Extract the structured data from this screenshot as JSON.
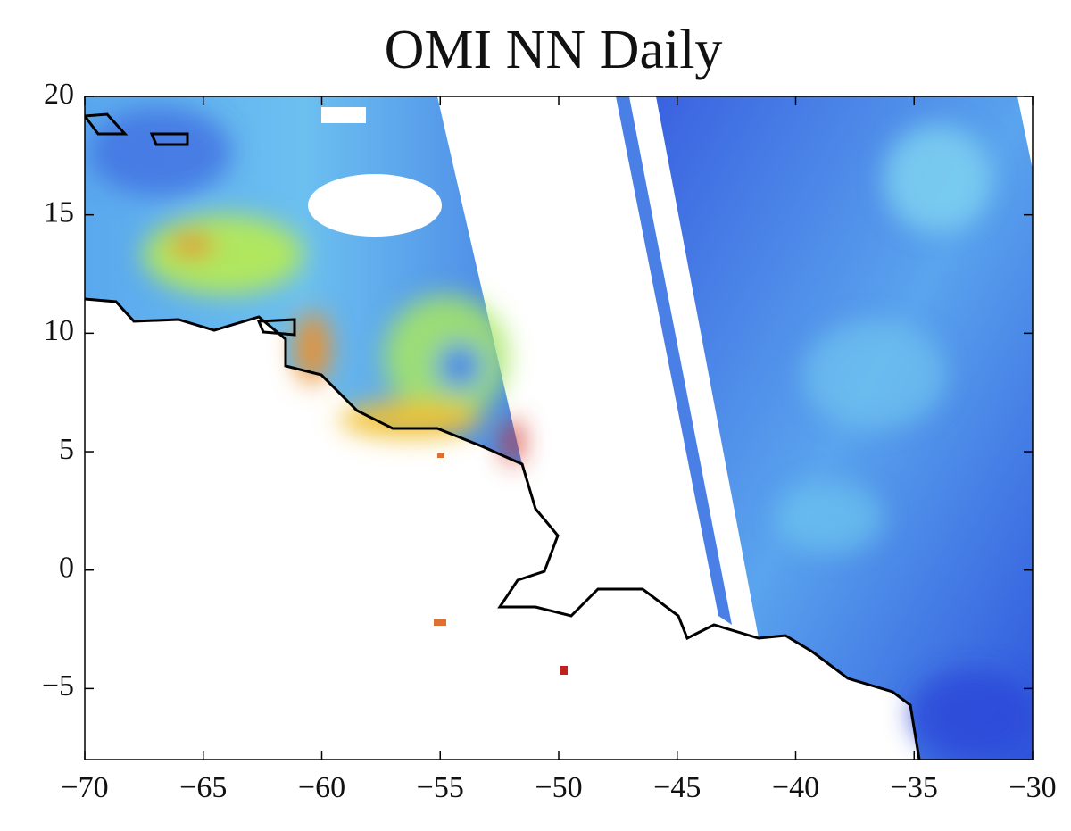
{
  "chart_data": {
    "type": "map",
    "title": "OMI NN Daily",
    "xlim": [
      -70,
      -30
    ],
    "ylim": [
      -8,
      20
    ],
    "xticks": [
      {
        "value": -70,
        "label": "−70"
      },
      {
        "value": -65,
        "label": "−65"
      },
      {
        "value": -60,
        "label": "−60"
      },
      {
        "value": -55,
        "label": "−55"
      },
      {
        "value": -50,
        "label": "−50"
      },
      {
        "value": -45,
        "label": "−45"
      },
      {
        "value": -40,
        "label": "−40"
      },
      {
        "value": -35,
        "label": "−35"
      },
      {
        "value": -30,
        "label": "−30"
      }
    ],
    "yticks": [
      {
        "value": -5,
        "label": "−5"
      },
      0,
      5,
      10,
      15,
      20
    ]
  }
}
